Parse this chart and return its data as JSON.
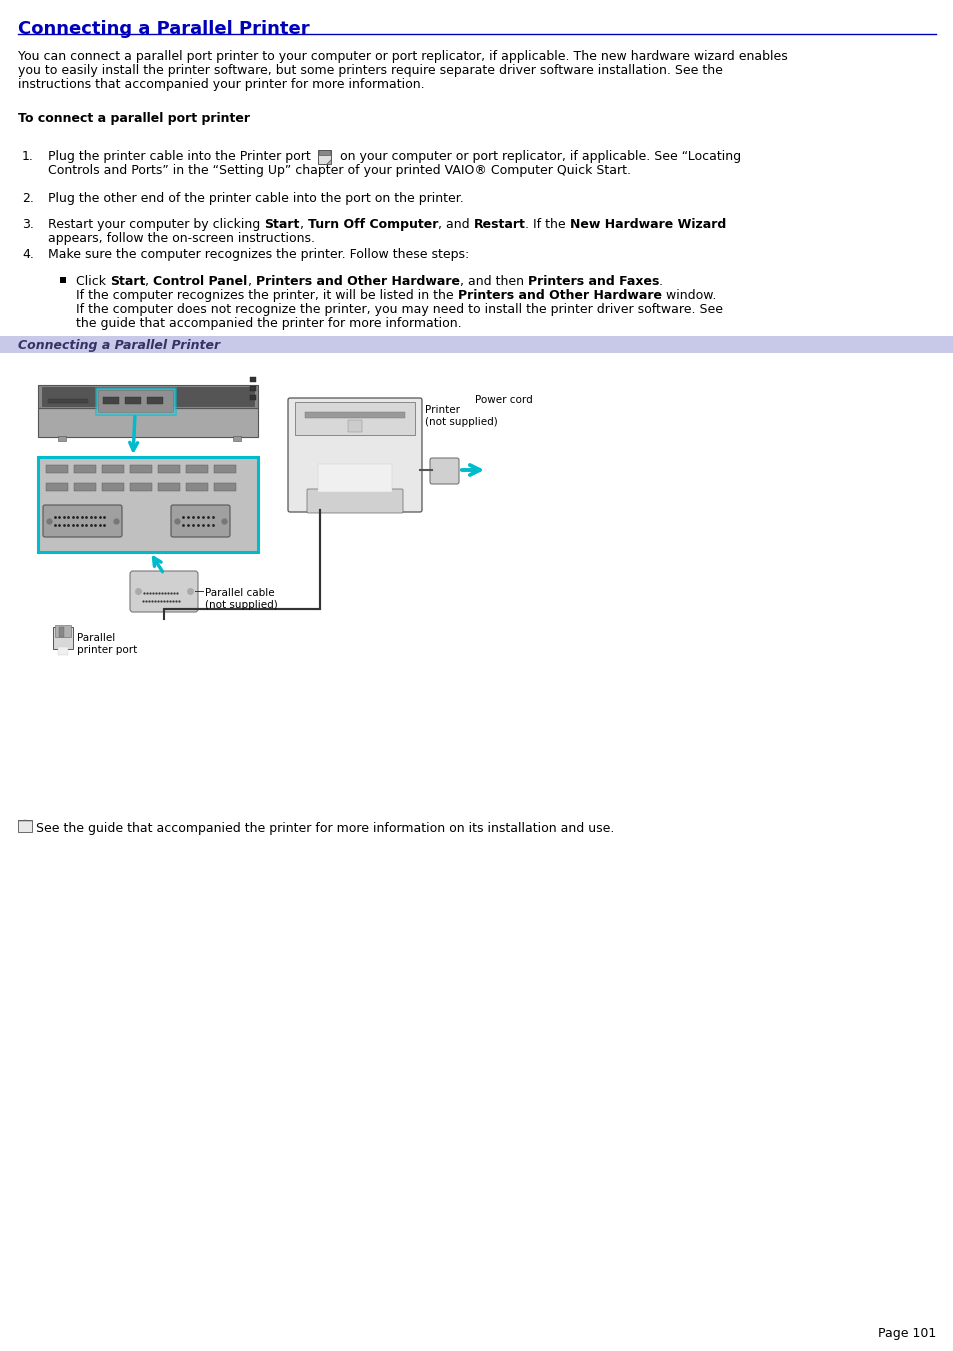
{
  "bg_color": "#ffffff",
  "title": "Connecting a Parallel Printer",
  "title_color": "#0000bb",
  "underline_color": "#0000bb",
  "section_bar_color": "#c8c8e8",
  "section_bar_text": "Connecting a Parallel Printer",
  "body_color": "#000000",
  "page_num": "Page 101",
  "cyan": "#00bbcc",
  "gray_conn": "#c8c8c8",
  "fs_title": 13,
  "fs_body": 9,
  "fs_small": 7.5,
  "lm": 18,
  "para1": [
    "You can connect a parallel port printer to your computer or port replicator, if applicable. The new hardware wizard enables",
    "you to easily install the printer software, but some printers require separate driver software installation. See the",
    "instructions that accompanied your printer for more information."
  ],
  "heading2": "To connect a parallel port printer",
  "step1a": "Plug the printer cable into the Printer port",
  "step1b": " on your computer or port replicator, if applicable. See “Locating",
  "step1c": "Controls and Ports” in the “Setting Up” chapter of your printed VAIO® Computer Quick Start.",
  "step2": "Plug the other end of the printer cable into the port on the printer.",
  "step3_line1": [
    [
      "Restart your computer by clicking ",
      false
    ],
    [
      "Start",
      true
    ],
    [
      ", ",
      false
    ],
    [
      "Turn Off Computer",
      true
    ],
    [
      ", and ",
      false
    ],
    [
      "Restart",
      true
    ],
    [
      ". If the ",
      false
    ],
    [
      "New Hardware Wizard",
      true
    ]
  ],
  "step3_line2": "appears, follow the on-screen instructions.",
  "step4": "Make sure the computer recognizes the printer. Follow these steps:",
  "bullet_line1": [
    [
      "Click ",
      false
    ],
    [
      "Start",
      true
    ],
    [
      ", ",
      false
    ],
    [
      "Control Panel",
      true
    ],
    [
      ", ",
      false
    ],
    [
      "Printers and Other Hardware",
      true
    ],
    [
      ", and then ",
      false
    ],
    [
      "Printers and Faxes",
      true
    ],
    [
      ".",
      false
    ]
  ],
  "bullet_line2a": "If the computer recognizes the printer, it will be listed in the ",
  "bullet_line2b": "Printers and Other Hardware",
  "bullet_line2c": " window.",
  "bullet_line3": "If the computer does not recognize the printer, you may need to install the printer driver software. See",
  "bullet_line4": "the guide that accompanied the printer for more information.",
  "diag_label_printer": "Printer\n(not supplied)",
  "diag_label_power": "Power cord",
  "diag_label_cable": "Parallel cable\n(not supplied)",
  "diag_label_port": "Parallel\nprinter port",
  "note": "See the guide that accompanied the printer for more information on its installation and use."
}
